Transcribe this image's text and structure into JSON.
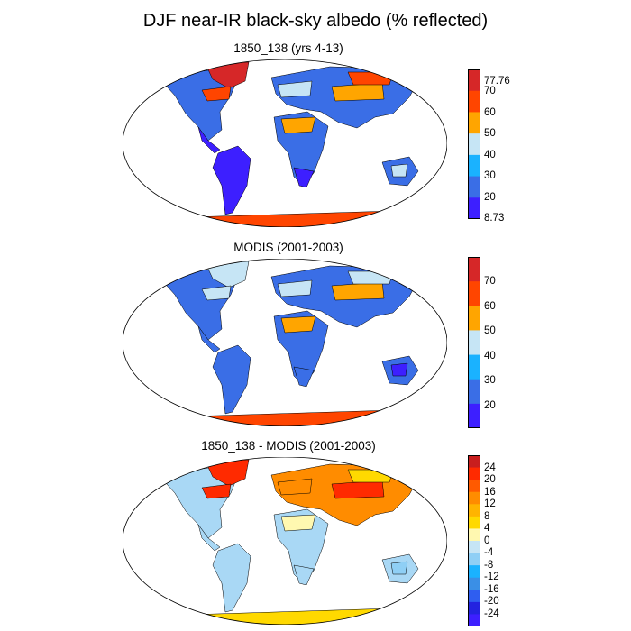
{
  "figure": {
    "title": "DJF near-IR black-sky albedo (% reflected)"
  },
  "panels": [
    {
      "title": "1850_138 (yrs 4-13)",
      "colorbar": {
        "labels": [
          "77.76",
          "70",
          "60",
          "50",
          "40",
          "30",
          "20",
          "8.73"
        ],
        "colors": [
          "#d62728",
          "#ff4500",
          "#ffa500",
          "#c6e5f5",
          "#1ab2ff",
          "#3a6ee6",
          "#3d1fff"
        ]
      },
      "colors": {
        "land": "#3a6ee6",
        "snow": "#ff4500",
        "desert": "#ffa500",
        "light": "#c6e5f5",
        "dark": "#3d1fff",
        "ice": "#d62728"
      }
    },
    {
      "title": "MODIS (2001-2003)",
      "colorbar": {
        "labels": [
          "70",
          "60",
          "50",
          "40",
          "30",
          "20"
        ],
        "colors": [
          "#ff4500",
          "#ffa500",
          "#c6e5f5",
          "#1ab2ff",
          "#3a6ee6",
          "#3d1fff"
        ],
        "top_color": "#d62728"
      },
      "colors": {
        "land": "#3a6ee6",
        "snow": "#ff4500",
        "desert": "#ffa500",
        "light": "#c6e5f5",
        "dark": "#3d1fff",
        "ice": "#d62728"
      }
    },
    {
      "title": "1850_138 - MODIS (2001-2003)",
      "colorbar": {
        "labels": [
          "24",
          "20",
          "16",
          "12",
          "8",
          "4",
          "0",
          "-4",
          "-8",
          "-12",
          "-16",
          "-20",
          "-24"
        ],
        "colors": [
          "#c81e1e",
          "#ff2a00",
          "#ff5a00",
          "#ff8c00",
          "#ffb400",
          "#ffd900",
          "#fff8b0",
          "#c6e5f5",
          "#8fcff5",
          "#1ab2ff",
          "#3a8fe6",
          "#2f5ef0",
          "#2323e0",
          "#3d1fff"
        ]
      },
      "colors": {
        "land": "#a9d8f5",
        "snow": "#ff8c00",
        "desert": "#ffd900",
        "light": "#fff8b0",
        "dark": "#8fcff5",
        "ice": "#ff2a00"
      }
    }
  ]
}
